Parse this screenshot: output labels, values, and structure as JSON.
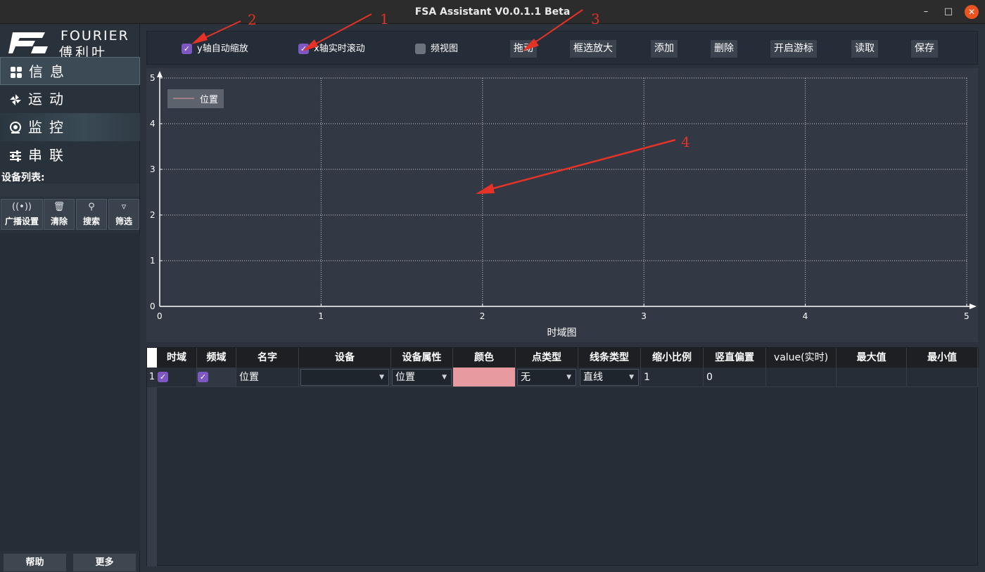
{
  "window": {
    "title": "FSA Assistant V0.0.1.1 Beta",
    "min_icon": "minimize-icon",
    "max_icon": "maximize-icon",
    "close_icon": "close-icon"
  },
  "logo": {
    "en": "FOURIER",
    "cn": "傅利叶"
  },
  "nav": [
    {
      "label": "信息",
      "icon": "grid-icon"
    },
    {
      "label": "运动",
      "icon": "pinwheel-icon"
    },
    {
      "label": "监控",
      "icon": "camera-icon"
    },
    {
      "label": "串联",
      "icon": "sliders-icon"
    }
  ],
  "device_list_label": "设备列表:",
  "tools": [
    {
      "label": "广播设置",
      "icon": "broadcast-icon"
    },
    {
      "label": "清除",
      "icon": "trash-icon"
    },
    {
      "label": "搜索",
      "icon": "search-icon"
    },
    {
      "label": "筛选",
      "icon": "filter-icon"
    }
  ],
  "bottom": {
    "help": "帮助",
    "more": "更多"
  },
  "toolbar": {
    "y_auto_scale": {
      "label": "y轴自动缩放",
      "checked": true
    },
    "x_realtime_scroll": {
      "label": "x轴实时滚动",
      "checked": true
    },
    "freq_view": {
      "label": "频视图",
      "checked": false
    },
    "buttons": [
      "拖动",
      "框选放大",
      "添加",
      "删除",
      "开启游标",
      "读取",
      "保存"
    ]
  },
  "chart_data": {
    "type": "line",
    "title": "",
    "xlabel": "时域图",
    "ylabel": "",
    "xlim": [
      0,
      5
    ],
    "ylim": [
      0,
      5
    ],
    "x_ticks": [
      0,
      1,
      2,
      3,
      4,
      5
    ],
    "y_ticks": [
      0,
      1,
      2,
      3,
      4,
      5
    ],
    "grid": true,
    "legend_position": "top-left",
    "series": [
      {
        "name": "位置",
        "color": "#e89aa1",
        "x": [],
        "y": []
      }
    ]
  },
  "table": {
    "headers": [
      "时域",
      "频域",
      "名字",
      "设备",
      "设备属性",
      "颜色",
      "点类型",
      "线条类型",
      "缩小比例",
      "竖直偏置",
      "value(实时)",
      "最大值",
      "最小值"
    ],
    "rows": [
      {
        "num": "1",
        "time_domain": true,
        "freq_domain": true,
        "name": "位置",
        "device": "",
        "attribute": "位置",
        "color": "#e89aa1",
        "point_type": "无",
        "line_type": "直线",
        "scale": "1",
        "v_offset": "0",
        "value": "",
        "max": "",
        "min": ""
      }
    ]
  },
  "annotations": [
    "1",
    "2",
    "3",
    "4"
  ],
  "colors": {
    "accent": "#7e57c2",
    "annotation": "#e53226",
    "close": "#e95420"
  }
}
